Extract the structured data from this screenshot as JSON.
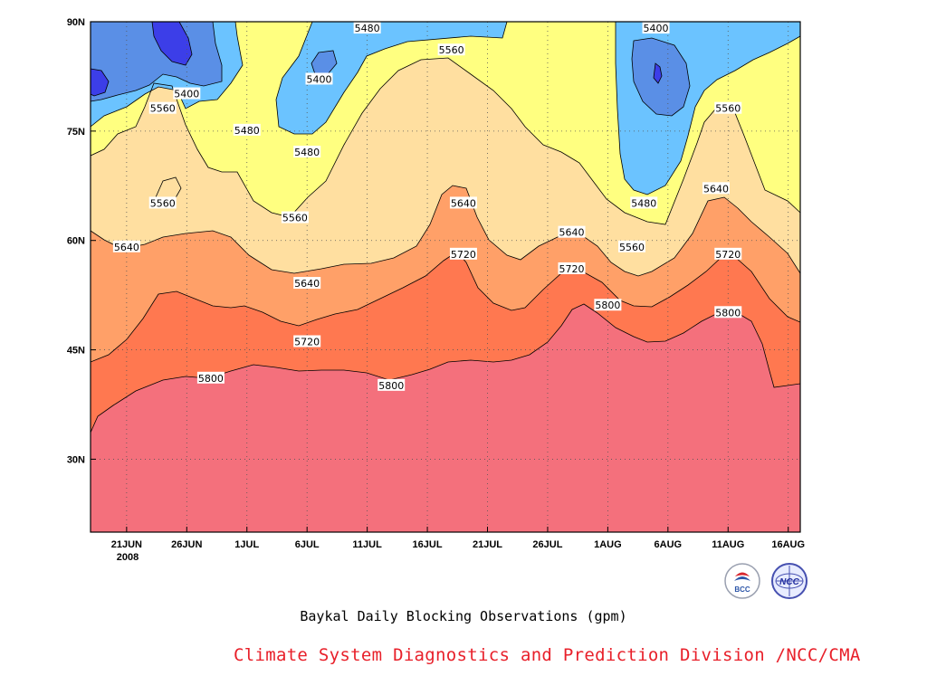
{
  "chart_data": {
    "type": "contour",
    "title": "Baykal Daily Blocking Observations (gpm)",
    "units": "gpm",
    "x_ticks": [
      "21JUN",
      "26JUN",
      "1JUL",
      "6JUL",
      "11JUL",
      "16JUL",
      "21JUL",
      "26JUL",
      "1AUG",
      "6AUG",
      "11AUG",
      "16AUG"
    ],
    "x_year": "2008",
    "x_range": [
      "2008-06-18",
      "2008-08-16"
    ],
    "y_ticks": [
      "30N",
      "45N",
      "60N",
      "75N",
      "90N"
    ],
    "y_range": [
      20,
      90
    ],
    "grid": "dotted",
    "contour_levels": [
      5400,
      5480,
      5560,
      5640,
      5720,
      5800
    ],
    "fill_colors": {
      "below_5400": "#3c3ee8",
      "5400_5480": "#5a8fe6",
      "5480_5560": "#6bc3ff",
      "5560_5640": "#ffff80",
      "5640_5720": "#ffdfa0",
      "5720_5800": "#ffa068",
      "5800_5880": "#ff7850",
      "above_5880": "#f4707c"
    },
    "contour_labels": [
      {
        "value": "5480",
        "date": "2008-07-11",
        "lat": 89
      },
      {
        "value": "5400",
        "date": "2008-07-07",
        "lat": 82
      },
      {
        "value": "5400",
        "date": "2008-06-26",
        "lat": 80
      },
      {
        "value": "5560",
        "date": "2008-06-24",
        "lat": 78
      },
      {
        "value": "5480",
        "date": "2008-07-01",
        "lat": 75
      },
      {
        "value": "5480",
        "date": "2008-07-06",
        "lat": 72
      },
      {
        "value": "5560",
        "date": "2008-06-24",
        "lat": 65
      },
      {
        "value": "5560",
        "date": "2008-07-05",
        "lat": 63
      },
      {
        "value": "5640",
        "date": "2008-06-21",
        "lat": 59
      },
      {
        "value": "5640",
        "date": "2008-07-06",
        "lat": 54
      },
      {
        "value": "5720",
        "date": "2008-07-06",
        "lat": 46
      },
      {
        "value": "5800",
        "date": "2008-06-28",
        "lat": 41
      },
      {
        "value": "5800",
        "date": "2008-07-13",
        "lat": 40
      },
      {
        "value": "5560",
        "date": "2008-07-18",
        "lat": 86
      },
      {
        "value": "5640",
        "date": "2008-07-19",
        "lat": 65
      },
      {
        "value": "5720",
        "date": "2008-07-19",
        "lat": 58
      },
      {
        "value": "5640",
        "date": "2008-07-28",
        "lat": 61
      },
      {
        "value": "5720",
        "date": "2008-07-28",
        "lat": 56
      },
      {
        "value": "5800",
        "date": "2008-07-31",
        "lat": 51
      },
      {
        "value": "5400",
        "date": "2008-08-04",
        "lat": 89
      },
      {
        "value": "5480",
        "date": "2008-08-03",
        "lat": 65
      },
      {
        "value": "5560",
        "date": "2008-08-02",
        "lat": 59
      },
      {
        "value": "5560",
        "date": "2008-08-10",
        "lat": 78
      },
      {
        "value": "5640",
        "date": "2008-08-09",
        "lat": 67
      },
      {
        "value": "5720",
        "date": "2008-08-10",
        "lat": 58
      },
      {
        "value": "5800",
        "date": "2008-08-10",
        "lat": 50
      }
    ]
  },
  "caption": "Baykal Daily Blocking Observations (gpm)",
  "credit": "Climate System Diagnostics and Prediction Division /NCC/CMA",
  "logos": [
    {
      "name": "bcc-logo",
      "text": "BCC"
    },
    {
      "name": "ncc-logo",
      "text": "NCC"
    }
  ],
  "colors": {
    "credit": "#e8202a",
    "grid": "#555555"
  }
}
